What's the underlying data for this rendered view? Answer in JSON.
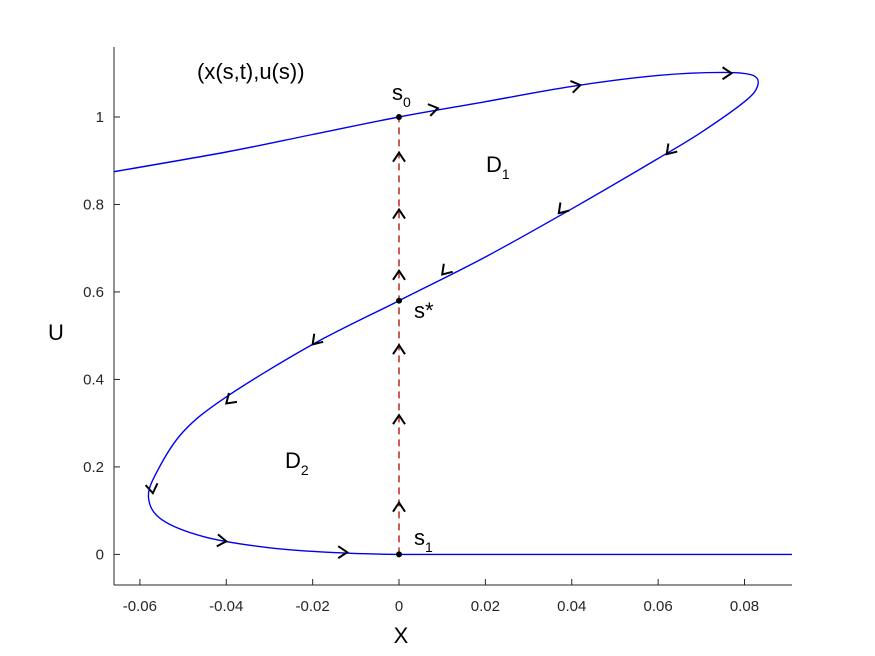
{
  "chart_data": {
    "type": "line",
    "title": "",
    "xlabel": "X",
    "ylabel": "U",
    "xlim": [
      -0.066,
      0.091
    ],
    "ylim": [
      -0.07,
      1.16
    ],
    "grid": false,
    "x_ticks": [
      "-0.06",
      "-0.04",
      "-0.02",
      "0",
      "0.02",
      "0.04",
      "0.06",
      "0.08"
    ],
    "x_tick_values": [
      -0.06,
      -0.04,
      -0.02,
      0,
      0.02,
      0.04,
      0.06,
      0.08
    ],
    "y_ticks": [
      "0",
      "0.2",
      "0.4",
      "0.6",
      "0.8",
      "1"
    ],
    "y_tick_values": [
      0,
      0.2,
      0.4,
      0.6,
      0.8,
      1.0
    ],
    "curve_color": "#0000ee",
    "dashed_color": "#c0392b",
    "curve": {
      "x": [
        -0.066,
        -0.04,
        -0.02,
        0,
        0.02,
        0.04,
        0.06,
        0.075,
        0.082,
        0.083,
        0.08,
        0.07,
        0.06,
        0.04,
        0.02,
        0,
        -0.02,
        -0.04,
        -0.05,
        -0.056,
        -0.058,
        -0.055,
        -0.045,
        -0.03,
        -0.015,
        0,
        0.03,
        0.06,
        0.091
      ],
      "y": [
        0.875,
        0.92,
        0.96,
        1.0,
        1.035,
        1.07,
        1.095,
        1.102,
        1.095,
        1.07,
        1.035,
        0.965,
        0.905,
        0.79,
        0.68,
        0.58,
        0.48,
        0.36,
        0.28,
        0.19,
        0.13,
        0.08,
        0.04,
        0.015,
        0.004,
        0.0,
        0.0,
        0.0,
        0.0
      ]
    },
    "dashed_line": {
      "x": 0,
      "y": [
        0,
        1
      ]
    },
    "points": [
      {
        "name": "s0",
        "x": 0,
        "y": 1.0
      },
      {
        "name": "s*",
        "x": 0,
        "y": 0.58
      },
      {
        "name": "s1",
        "x": 0,
        "y": 0.0
      }
    ],
    "curve_arrows": [
      {
        "x": 0.009,
        "y": 1.02,
        "dx": 1,
        "dy": 0.2
      },
      {
        "x": 0.042,
        "y": 1.073,
        "dx": 1,
        "dy": 0.2
      },
      {
        "x": 0.077,
        "y": 1.1,
        "dx": 1,
        "dy": 0
      },
      {
        "x": 0.062,
        "y": 0.915,
        "dx": -1,
        "dy": -1.1
      },
      {
        "x": 0.037,
        "y": 0.78,
        "dx": -1,
        "dy": -1.1
      },
      {
        "x": 0.01,
        "y": 0.64,
        "dx": -1,
        "dy": -1.1
      },
      {
        "x": -0.02,
        "y": 0.48,
        "dx": -1,
        "dy": -1.1
      },
      {
        "x": -0.04,
        "y": 0.345,
        "dx": -1,
        "dy": -0.9
      },
      {
        "x": -0.057,
        "y": 0.14,
        "dx": 0.15,
        "dy": -1
      },
      {
        "x": -0.04,
        "y": 0.03,
        "dx": 1,
        "dy": -0.1
      },
      {
        "x": -0.012,
        "y": 0.005,
        "dx": 1,
        "dy": 0
      }
    ],
    "dashed_arrows_y": [
      0.9,
      0.77,
      0.63,
      0.46,
      0.3,
      0.1
    ],
    "annotations": {
      "pair": "(x(s,t),u(s))",
      "s0": {
        "base": "s",
        "sub": "0"
      },
      "s_star": "s*",
      "s1": {
        "base": "s",
        "sub": "1"
      },
      "d1": {
        "base": "D",
        "sub": "1"
      },
      "d2": {
        "base": "D",
        "sub": "2"
      }
    }
  }
}
